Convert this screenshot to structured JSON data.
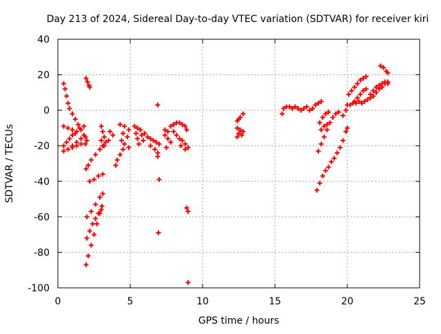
{
  "chart_data": {
    "type": "scatter",
    "title": "Day 213 of 2024, Sidereal Day-to-day VTEC variation (SDTVAR) for receiver kiri",
    "xlabel": "GPS time / hours",
    "ylabel": "SDTVAR / TECUs",
    "xlim": [
      0,
      25
    ],
    "ylim": [
      -100,
      40
    ],
    "xticks": [
      "0",
      "5",
      "10",
      "15",
      "20",
      "25"
    ],
    "yticks": [
      "40",
      "20",
      "0",
      "-20",
      "-40",
      "-60",
      "-80",
      "-100"
    ],
    "grid": true,
    "marker": "+",
    "color": "#ff0000",
    "series": [
      {
        "points": [
          [
            0.4,
            15
          ],
          [
            0.5,
            12
          ],
          [
            0.6,
            8
          ],
          [
            0.7,
            4
          ],
          [
            0.8,
            1
          ],
          [
            1.0,
            -2
          ],
          [
            1.2,
            -5
          ],
          [
            1.4,
            -8
          ],
          [
            1.6,
            -11
          ],
          [
            1.8,
            -14
          ],
          [
            2.0,
            -17
          ],
          [
            0.4,
            -9
          ],
          [
            0.7,
            -10
          ],
          [
            1.0,
            -11
          ],
          [
            1.3,
            -12
          ],
          [
            1.5,
            -10
          ],
          [
            1.8,
            -9
          ],
          [
            0.4,
            -20
          ],
          [
            0.6,
            -18
          ],
          [
            0.8,
            -16
          ],
          [
            1.0,
            -14
          ],
          [
            1.2,
            -13
          ],
          [
            0.4,
            -23
          ],
          [
            0.7,
            -22
          ],
          [
            1.0,
            -20
          ],
          [
            1.3,
            -18
          ],
          [
            1.6,
            -16
          ],
          [
            1.9,
            -15
          ],
          [
            1.0,
            -21
          ],
          [
            1.3,
            -20
          ],
          [
            1.6,
            -19
          ],
          [
            1.9,
            -19
          ],
          [
            1.95,
            18
          ],
          [
            2.05,
            16
          ],
          [
            2.15,
            14
          ],
          [
            2.2,
            13
          ],
          [
            1.95,
            -33
          ],
          [
            2.1,
            -31
          ],
          [
            2.3,
            -28
          ],
          [
            2.6,
            -25
          ],
          [
            2.9,
            -22
          ],
          [
            3.1,
            -20
          ],
          [
            2.2,
            -40
          ],
          [
            2.5,
            -39
          ],
          [
            2.8,
            -37
          ],
          [
            3.1,
            -36
          ],
          [
            2.0,
            -60
          ],
          [
            2.3,
            -57
          ],
          [
            2.6,
            -53
          ],
          [
            2.9,
            -49
          ],
          [
            3.1,
            -47
          ],
          [
            2.0,
            -72
          ],
          [
            2.2,
            -68
          ],
          [
            2.4,
            -64
          ],
          [
            2.6,
            -61
          ],
          [
            2.8,
            -58
          ],
          [
            3.0,
            -56
          ],
          [
            1.95,
            -87
          ],
          [
            2.1,
            -82
          ],
          [
            2.3,
            -76
          ],
          [
            2.5,
            -70
          ],
          [
            2.7,
            -64
          ],
          [
            2.9,
            -58
          ],
          [
            3.05,
            -54
          ],
          [
            3.0,
            -9
          ],
          [
            3.1,
            -12
          ],
          [
            3.2,
            -15
          ],
          [
            3.3,
            -18
          ],
          [
            3.0,
            -17
          ],
          [
            3.2,
            -20
          ],
          [
            3.6,
            -12
          ],
          [
            3.8,
            -14
          ],
          [
            3.5,
            -17
          ],
          [
            4.0,
            -31
          ],
          [
            4.1,
            -28
          ],
          [
            4.3,
            -25
          ],
          [
            4.5,
            -22
          ],
          [
            4.3,
            -8
          ],
          [
            4.6,
            -9
          ],
          [
            4.9,
            -11
          ],
          [
            4.5,
            -13
          ],
          [
            4.8,
            -15
          ],
          [
            4.4,
            -17
          ],
          [
            4.6,
            -19
          ],
          [
            4.9,
            -21
          ],
          [
            5.3,
            -9
          ],
          [
            5.5,
            -10
          ],
          [
            5.7,
            -11
          ],
          [
            5.4,
            -13
          ],
          [
            5.8,
            -14
          ],
          [
            5.5,
            -16
          ],
          [
            5.9,
            -17
          ],
          [
            5.6,
            -19
          ],
          [
            6.0,
            -13
          ],
          [
            6.2,
            -15
          ],
          [
            6.4,
            -16
          ],
          [
            6.6,
            -17
          ],
          [
            6.8,
            -18
          ],
          [
            7.0,
            -19
          ],
          [
            6.4,
            -20
          ],
          [
            6.7,
            -22
          ],
          [
            6.9,
            -24
          ],
          [
            6.9,
            3
          ],
          [
            6.9,
            -26
          ],
          [
            7.0,
            -39
          ],
          [
            6.95,
            -69
          ],
          [
            7.4,
            -11
          ],
          [
            7.6,
            -12
          ],
          [
            7.4,
            -14
          ],
          [
            7.6,
            -16
          ],
          [
            7.8,
            -18
          ],
          [
            7.5,
            -21
          ],
          [
            7.8,
            -9
          ],
          [
            8.0,
            -8
          ],
          [
            8.2,
            -7
          ],
          [
            8.4,
            -7
          ],
          [
            8.6,
            -8
          ],
          [
            8.8,
            -9
          ],
          [
            8.9,
            -11
          ],
          [
            8.0,
            -12
          ],
          [
            8.2,
            -14
          ],
          [
            8.4,
            -16
          ],
          [
            8.6,
            -17
          ],
          [
            8.8,
            -19
          ],
          [
            9.0,
            -21
          ],
          [
            8.5,
            -20
          ],
          [
            8.8,
            -22
          ],
          [
            8.9,
            -55
          ],
          [
            9.0,
            -57
          ],
          [
            9.0,
            -97
          ],
          [
            12.4,
            -6
          ],
          [
            12.5,
            -5
          ],
          [
            12.6,
            -4
          ],
          [
            12.8,
            -2
          ],
          [
            12.4,
            -10
          ],
          [
            12.6,
            -11
          ],
          [
            12.8,
            -12
          ],
          [
            12.5,
            -13
          ],
          [
            12.7,
            -14
          ],
          [
            12.4,
            -15
          ],
          [
            15.5,
            -2
          ],
          [
            15.6,
            1
          ],
          [
            15.8,
            2
          ],
          [
            16.0,
            2
          ],
          [
            16.2,
            1
          ],
          [
            16.4,
            2
          ],
          [
            16.6,
            1
          ],
          [
            16.8,
            0
          ],
          [
            17.0,
            1
          ],
          [
            17.2,
            2
          ],
          [
            17.4,
            0
          ],
          [
            17.6,
            1
          ],
          [
            17.8,
            3
          ],
          [
            18.0,
            4
          ],
          [
            18.2,
            5
          ],
          [
            17.9,
            -45
          ],
          [
            18.1,
            -41
          ],
          [
            18.3,
            -37
          ],
          [
            18.5,
            -34
          ],
          [
            18.7,
            -32
          ],
          [
            18.9,
            -29
          ],
          [
            19.1,
            -27
          ],
          [
            19.3,
            -24
          ],
          [
            19.5,
            -21
          ],
          [
            19.7,
            -17
          ],
          [
            19.9,
            -12
          ],
          [
            20.0,
            -10
          ],
          [
            18.0,
            -23
          ],
          [
            18.2,
            -19
          ],
          [
            18.4,
            -15
          ],
          [
            18.6,
            -11
          ],
          [
            18.8,
            -7
          ],
          [
            19.0,
            -4
          ],
          [
            19.2,
            -2
          ],
          [
            19.4,
            -1
          ],
          [
            18.1,
            -7
          ],
          [
            18.3,
            -4
          ],
          [
            18.5,
            -2
          ],
          [
            18.7,
            -1
          ],
          [
            18.2,
            -11
          ],
          [
            18.4,
            -9
          ],
          [
            18.6,
            -8
          ],
          [
            19.7,
            -3
          ],
          [
            19.9,
            0
          ],
          [
            20.0,
            3
          ],
          [
            20.2,
            3
          ],
          [
            20.4,
            4
          ],
          [
            20.6,
            4
          ],
          [
            20.8,
            5
          ],
          [
            21.0,
            4
          ],
          [
            21.2,
            5
          ],
          [
            21.4,
            6
          ],
          [
            21.6,
            7
          ],
          [
            21.8,
            8
          ],
          [
            22.0,
            10
          ],
          [
            22.2,
            12
          ],
          [
            22.4,
            13
          ],
          [
            22.6,
            15
          ],
          [
            22.8,
            15
          ],
          [
            20.1,
            9
          ],
          [
            20.3,
            11
          ],
          [
            20.5,
            13
          ],
          [
            20.7,
            15
          ],
          [
            20.9,
            17
          ],
          [
            21.1,
            18
          ],
          [
            21.3,
            19
          ],
          [
            20.5,
            5
          ],
          [
            20.7,
            7
          ],
          [
            20.9,
            9
          ],
          [
            21.1,
            11
          ],
          [
            21.3,
            12
          ],
          [
            21.6,
            9
          ],
          [
            21.8,
            11
          ],
          [
            22.0,
            13
          ],
          [
            22.2,
            14
          ],
          [
            22.4,
            15
          ],
          [
            22.6,
            16
          ],
          [
            22.8,
            16
          ],
          [
            22.3,
            25
          ],
          [
            22.5,
            24
          ],
          [
            22.7,
            22
          ],
          [
            22.8,
            21
          ]
        ]
      }
    ]
  }
}
